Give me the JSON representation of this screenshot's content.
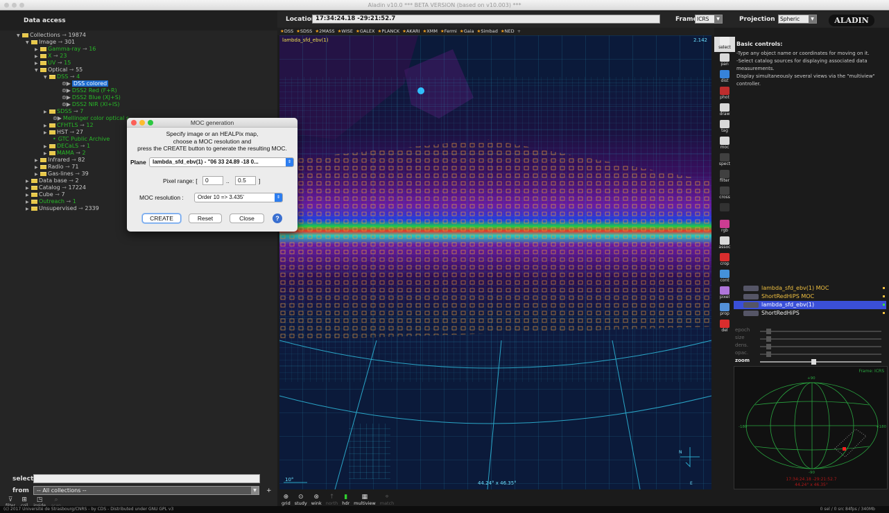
{
  "window": {
    "title": "Aladin v10.0   *** BETA VERSION (based on v10.003) ***"
  },
  "sidebar": {
    "title": "Data access",
    "tree": [
      {
        "indent": 0,
        "open": true,
        "label": "Collections",
        "count": "19874",
        "color": "light"
      },
      {
        "indent": 1,
        "open": true,
        "label": "Image",
        "count": "301",
        "color": "light"
      },
      {
        "indent": 2,
        "open": false,
        "label": "Gamma-ray",
        "count": "16",
        "color": "green"
      },
      {
        "indent": 2,
        "open": false,
        "label": "X",
        "count": "23",
        "color": "green"
      },
      {
        "indent": 2,
        "open": false,
        "label": "UV",
        "count": "15",
        "color": "green"
      },
      {
        "indent": 2,
        "open": true,
        "label": "Optical",
        "count": "55",
        "color": "light"
      },
      {
        "indent": 3,
        "open": true,
        "label": "DSS",
        "count": "4",
        "color": "green"
      },
      {
        "indent": 5,
        "leaf": true,
        "label": "DSS colored",
        "selected": true,
        "color": "light"
      },
      {
        "indent": 5,
        "leaf": true,
        "label": "DSS2 Red (F+R)",
        "color": "green"
      },
      {
        "indent": 5,
        "leaf": true,
        "label": "DSS2 Blue (XJ+S)",
        "color": "green"
      },
      {
        "indent": 5,
        "leaf": true,
        "label": "DSS2 NIR (XI+IS)",
        "color": "green"
      },
      {
        "indent": 3,
        "open": false,
        "label": "SDSS",
        "count": "7",
        "color": "green"
      },
      {
        "indent": 4,
        "leaf": true,
        "label": "Mellinger color optical s",
        "color": "green"
      },
      {
        "indent": 3,
        "open": false,
        "label": "CFHTLS",
        "count": "12",
        "color": "green"
      },
      {
        "indent": 3,
        "open": false,
        "label": "HST",
        "count": "27",
        "color": "light"
      },
      {
        "indent": 4,
        "leaf": true,
        "dot": true,
        "label": "GTC Public Archive",
        "color": "green"
      },
      {
        "indent": 3,
        "open": false,
        "label": "DECaLS",
        "count": "1",
        "color": "green"
      },
      {
        "indent": 3,
        "open": false,
        "label": "MAMA",
        "count": "2",
        "color": "green"
      },
      {
        "indent": 2,
        "open": false,
        "label": "Infrared",
        "count": "82",
        "color": "light"
      },
      {
        "indent": 2,
        "open": false,
        "label": "Radio",
        "count": "71",
        "color": "light"
      },
      {
        "indent": 2,
        "open": false,
        "label": "Gas-lines",
        "count": "39",
        "color": "light"
      },
      {
        "indent": 1,
        "open": false,
        "label": "Data base",
        "count": "2",
        "color": "light"
      },
      {
        "indent": 1,
        "open": false,
        "label": "Catalog",
        "count": "17224",
        "color": "light"
      },
      {
        "indent": 1,
        "open": false,
        "label": "Cube",
        "count": "7",
        "color": "light"
      },
      {
        "indent": 1,
        "open": false,
        "label": "Outreach",
        "count": "1",
        "color": "green"
      },
      {
        "indent": 1,
        "open": false,
        "label": "Unsupervised",
        "count": "2339",
        "color": "light"
      }
    ],
    "select_label": "select",
    "from_label": "from",
    "from_value": "-- All collections --",
    "tools": [
      "filter",
      "coll",
      "inside",
      "scan"
    ]
  },
  "topbar": {
    "location_label": "Location",
    "location_value": "17:34:24.18 -29:21:52.7",
    "frame_label": "Frame",
    "frame_value": "ICRS",
    "projection_label": "Projection",
    "projection_value": "Spheric",
    "logo": "ALADIN"
  },
  "catalogs": [
    "DSS",
    "SDSS",
    "2MASS",
    "WISE",
    "GALEX",
    "PLANCK",
    "AKARI",
    "XMM",
    "Fermi",
    "Gaia",
    "Simbad",
    "NED"
  ],
  "catalogs_add": "+",
  "view": {
    "plane_label": "lambda_sfd_ebv(1)",
    "scale_value": "2.142",
    "scale_bar": "10°",
    "fov": "44.24° x 46.35°",
    "compass_n": "N",
    "compass_e": "E"
  },
  "view_tools": [
    "grid",
    "study",
    "wink",
    "north",
    "hdr",
    "multiview",
    "match"
  ],
  "right_tools": [
    "select",
    "pan",
    "dist",
    "phot",
    "draw",
    "tag",
    "moc",
    "spect",
    "filter",
    "cross",
    "",
    "rgb",
    "assoc",
    "crop",
    "cont",
    "pixel",
    "prop",
    "del"
  ],
  "info": {
    "title": "Basic controls:",
    "lines": [
      "-Type any object name or coordinates for moving on it.",
      "-Select catalog sources for displaying associated data measurements.",
      "Display simultaneously several views via the \"multiview\" controller."
    ]
  },
  "layers": [
    {
      "label": "lambda_sfd_ebv(1) MOC",
      "selected": false
    },
    {
      "label": "ShortRedHiPS MOC",
      "selected": false
    },
    {
      "label": "lambda_sfd_ebv(1)",
      "selected": true
    },
    {
      "label": "ShortRedHiPS",
      "selected": false
    }
  ],
  "sliders": [
    {
      "label": "epoch",
      "active": false,
      "level": 0.05
    },
    {
      "label": "size",
      "active": false,
      "level": 0.05
    },
    {
      "label": "dens.",
      "active": false,
      "level": 0.05
    },
    {
      "label": "opac.",
      "active": false,
      "level": 0.05
    },
    {
      "label": "zoom",
      "active": true,
      "level": 0.42
    }
  ],
  "allsky": {
    "frame_label": "Frame: ICRS",
    "labels": [
      "+90",
      "-90",
      "-180",
      "+180"
    ],
    "coords": "17:34:24.18 -29:21:52.7",
    "fov": "44.24° x 46.35°"
  },
  "statusbar": {
    "left": "(c) 2017 Université de Strasbourg/CNRS - by CDS - Distributed under GNU GPL v3",
    "right": "0 sel / 0 src  84fps / 340Mb"
  },
  "dialog": {
    "title": "MOC generation",
    "instructions": [
      "Specify image or an HEALPix map,",
      "choose a MOC resolution and",
      "press the CREATE button to generate the resulting MOC."
    ],
    "plane_label": "Plane",
    "plane_value": "lambda_sfd_ebv(1) - \"06 33 24.89 -18 0...",
    "pixel_label": "Pixel range: [",
    "pixel_min": "0",
    "pixel_sep": "..",
    "pixel_max": "0.5",
    "pixel_end": "]",
    "resolution_label": "MOC resolution :",
    "resolution_value": "Order 10 => 3.435'",
    "create_label": "CREATE",
    "reset_label": "Reset",
    "close_label": "Close",
    "help_label": "?"
  },
  "colors": {
    "accent": "#1e6cd0",
    "moc_orange": "#e89a3c",
    "grid_cyan": "#2aa6c8",
    "catalog_star": "#f0a020"
  }
}
